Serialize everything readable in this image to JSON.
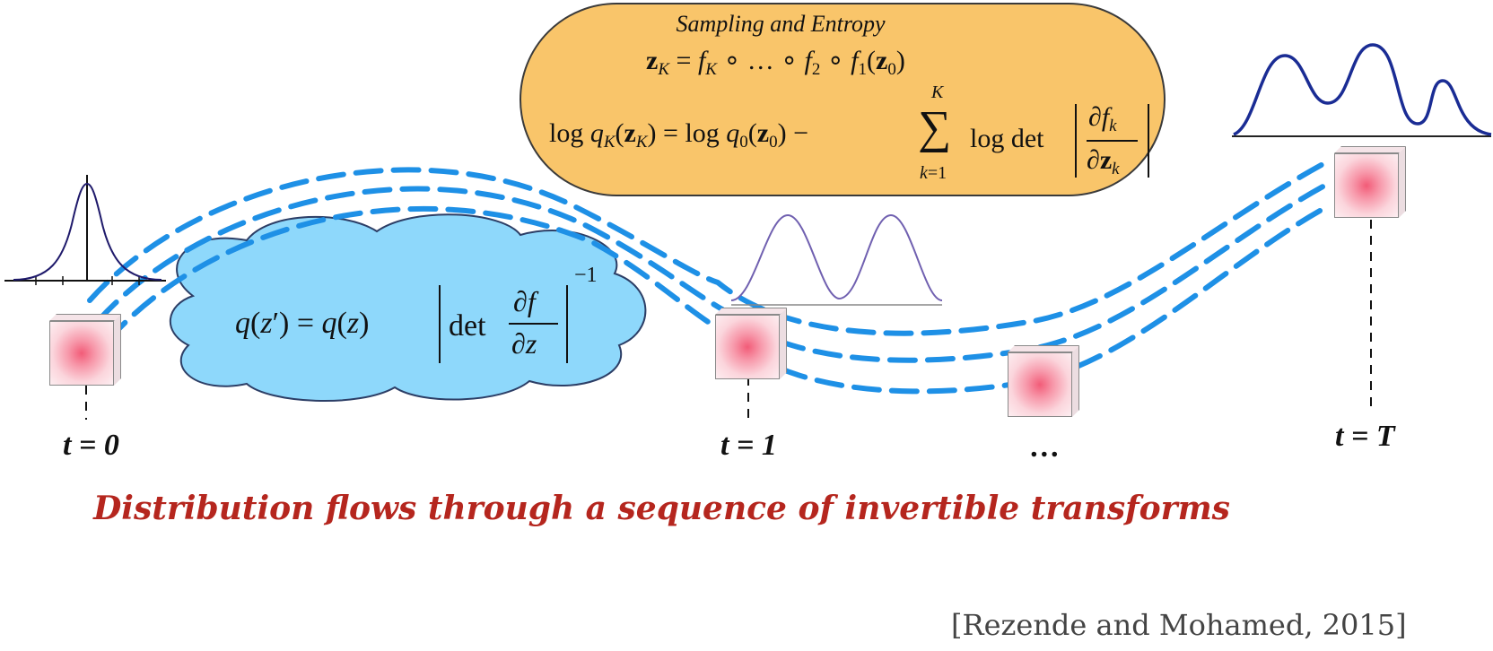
{
  "formula_box": {
    "title": "Sampling and Entropy"
  },
  "cloud_formula": "q(z′) = q(z) |det ∂f/∂z|⁻¹",
  "steps": [
    {
      "label": "t = 0"
    },
    {
      "label": "t = 1"
    },
    {
      "label": "…"
    },
    {
      "label": "t = T"
    }
  ],
  "caption": "Distribution flows through a sequence of invertible transforms",
  "citation": "[Rezende and Mohamed, 2015]",
  "colors": {
    "flow": "#1e90e6",
    "box_fill": "#f9c56a",
    "cloud_fill": "#8ed8fb",
    "caption": "#b5261e",
    "density_final": "#1a2c94",
    "density_initial": "#1f1a6b",
    "density_mid": "#7060b0"
  }
}
